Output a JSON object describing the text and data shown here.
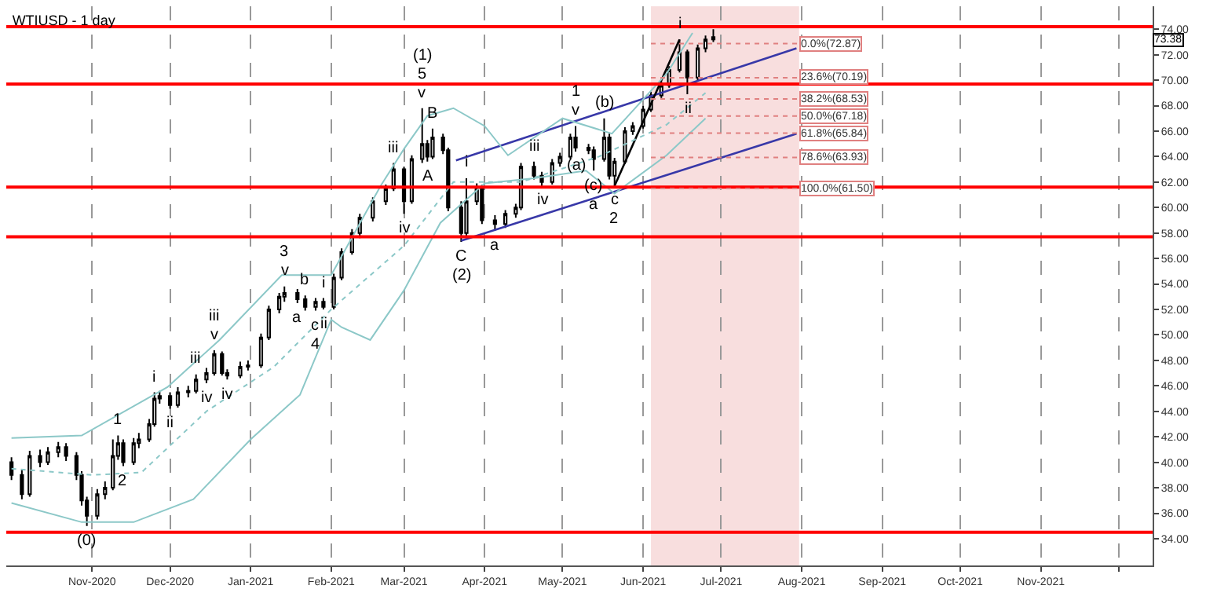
{
  "chart_data": {
    "type": "candlestick",
    "title": "WTIUSD - 1 day",
    "color": "#000000",
    "x": [
      "2020-10-01",
      "2020-10-05",
      "2020-10-08",
      "2020-10-12",
      "2020-10-15",
      "2020-10-19",
      "2020-10-22",
      "2020-10-26",
      "2020-10-28",
      "2020-10-30",
      "2020-11-03",
      "2020-11-06",
      "2020-11-09",
      "2020-11-11",
      "2020-11-13",
      "2020-11-17",
      "2020-11-19",
      "2020-11-23",
      "2020-11-25",
      "2020-11-27",
      "2020-12-01",
      "2020-12-04",
      "2020-12-08",
      "2020-12-11",
      "2020-12-15",
      "2020-12-18",
      "2020-12-21",
      "2020-12-23",
      "2020-12-28",
      "2020-12-31",
      "2021-01-05",
      "2021-01-08",
      "2021-01-12",
      "2021-01-14",
      "2021-01-19",
      "2021-01-22",
      "2021-01-26",
      "2021-01-29",
      "2021-02-02",
      "2021-02-05",
      "2021-02-09",
      "2021-02-12",
      "2021-02-17",
      "2021-02-22",
      "2021-02-25",
      "2021-03-01",
      "2021-03-04",
      "2021-03-08",
      "2021-03-10",
      "2021-03-12",
      "2021-03-16",
      "2021-03-18",
      "2021-03-23",
      "2021-03-25",
      "2021-03-29",
      "2021-03-31",
      "2021-04-05",
      "2021-04-09",
      "2021-04-13",
      "2021-04-15",
      "2021-04-20",
      "2021-04-23",
      "2021-04-27",
      "2021-04-30",
      "2021-05-04",
      "2021-05-06",
      "2021-05-11",
      "2021-05-13",
      "2021-05-17",
      "2021-05-19",
      "2021-05-21",
      "2021-05-25",
      "2021-05-28",
      "2021-06-01",
      "2021-06-04",
      "2021-06-08",
      "2021-06-11",
      "2021-06-15",
      "2021-06-18",
      "2021-06-22",
      "2021-06-25",
      "2021-06-28"
    ],
    "ohlc": [
      [
        40.0,
        40.4,
        38.6,
        39.0
      ],
      [
        39.0,
        39.4,
        37.1,
        37.5
      ],
      [
        37.5,
        40.9,
        37.3,
        40.5
      ],
      [
        40.5,
        41.0,
        39.6,
        40.0
      ],
      [
        40.0,
        41.2,
        39.8,
        40.8
      ],
      [
        40.8,
        41.6,
        40.4,
        41.2
      ],
      [
        41.2,
        41.5,
        40.1,
        40.5
      ],
      [
        40.5,
        40.8,
        38.6,
        39.0
      ],
      [
        39.0,
        39.3,
        36.6,
        37.0
      ],
      [
        37.0,
        37.3,
        35.0,
        35.8
      ],
      [
        35.8,
        37.9,
        35.5,
        37.5
      ],
      [
        37.5,
        38.5,
        37.1,
        38.0
      ],
      [
        38.0,
        41.8,
        37.8,
        40.5
      ],
      [
        40.5,
        42.1,
        40.2,
        41.5
      ],
      [
        41.5,
        41.8,
        39.7,
        40.0
      ],
      [
        40.0,
        41.9,
        39.8,
        41.5
      ],
      [
        41.5,
        42.3,
        41.1,
        41.8
      ],
      [
        41.8,
        43.4,
        41.6,
        43.0
      ],
      [
        43.0,
        45.5,
        42.8,
        45.0
      ],
      [
        45.0,
        45.6,
        44.6,
        45.2
      ],
      [
        45.2,
        45.5,
        44.2,
        44.5
      ],
      [
        44.5,
        45.9,
        44.3,
        45.5
      ],
      [
        45.5,
        46.0,
        45.1,
        45.6
      ],
      [
        45.6,
        46.9,
        45.4,
        46.5
      ],
      [
        46.5,
        47.4,
        46.2,
        47.0
      ],
      [
        47.0,
        48.8,
        46.8,
        48.5
      ],
      [
        48.5,
        48.7,
        46.8,
        47.0
      ],
      [
        47.0,
        47.3,
        46.5,
        46.8
      ],
      [
        46.8,
        47.9,
        46.6,
        47.5
      ],
      [
        47.5,
        48.0,
        47.2,
        47.6
      ],
      [
        47.6,
        50.1,
        47.4,
        49.8
      ],
      [
        49.8,
        52.3,
        49.6,
        52.0
      ],
      [
        52.0,
        53.3,
        51.7,
        53.0
      ],
      [
        53.0,
        53.8,
        52.6,
        53.3
      ],
      [
        53.3,
        53.6,
        52.5,
        52.8
      ],
      [
        52.8,
        53.1,
        51.9,
        52.2
      ],
      [
        52.2,
        52.9,
        51.9,
        52.6
      ],
      [
        52.6,
        52.9,
        52.0,
        52.2
      ],
      [
        52.2,
        54.8,
        52.0,
        54.5
      ],
      [
        54.5,
        56.8,
        54.3,
        56.5
      ],
      [
        56.5,
        58.3,
        56.3,
        58.0
      ],
      [
        58.0,
        59.5,
        57.6,
        59.2
      ],
      [
        59.2,
        60.8,
        58.9,
        60.5
      ],
      [
        60.5,
        61.8,
        60.2,
        61.5
      ],
      [
        61.5,
        63.5,
        61.3,
        63.0
      ],
      [
        63.0,
        63.2,
        59.5,
        60.5
      ],
      [
        60.5,
        64.1,
        60.3,
        63.8
      ],
      [
        63.8,
        67.8,
        63.5,
        65.0
      ],
      [
        65.0,
        65.3,
        63.6,
        64.0
      ],
      [
        64.0,
        66.2,
        63.8,
        65.5
      ],
      [
        65.5,
        65.8,
        64.2,
        64.5
      ],
      [
        64.5,
        64.7,
        59.7,
        60.0
      ],
      [
        60.0,
        60.5,
        57.3,
        58.0
      ],
      [
        58.0,
        62.3,
        57.8,
        60.5
      ],
      [
        60.5,
        61.9,
        60.2,
        61.5
      ],
      [
        61.5,
        61.8,
        58.7,
        59.0
      ],
      [
        59.0,
        59.4,
        58.2,
        58.7
      ],
      [
        58.7,
        59.8,
        58.4,
        59.5
      ],
      [
        59.5,
        60.3,
        59.2,
        60.0
      ],
      [
        60.0,
        63.5,
        59.8,
        63.2
      ],
      [
        63.2,
        63.6,
        62.2,
        62.5
      ],
      [
        62.5,
        62.8,
        61.7,
        62.0
      ],
      [
        62.0,
        63.8,
        61.8,
        63.5
      ],
      [
        63.5,
        64.3,
        63.2,
        64.0
      ],
      [
        64.0,
        65.8,
        63.8,
        65.5
      ],
      [
        65.5,
        66.4,
        64.4,
        64.7
      ],
      [
        64.7,
        65.0,
        64.2,
        64.5
      ],
      [
        64.5,
        64.8,
        62.9,
        63.8
      ],
      [
        63.8,
        67.0,
        63.6,
        65.5
      ],
      [
        65.5,
        65.8,
        62.2,
        62.5
      ],
      [
        62.5,
        63.9,
        61.7,
        63.6
      ],
      [
        63.6,
        66.3,
        63.4,
        66.0
      ],
      [
        66.0,
        66.7,
        65.7,
        66.4
      ],
      [
        66.4,
        68.0,
        66.2,
        67.7
      ],
      [
        67.7,
        69.1,
        67.5,
        68.8
      ],
      [
        68.8,
        69.9,
        68.6,
        69.6
      ],
      [
        69.6,
        71.1,
        69.4,
        70.8
      ],
      [
        70.8,
        73.2,
        70.6,
        72.2
      ],
      [
        72.2,
        72.4,
        68.9,
        70.2
      ],
      [
        70.2,
        72.8,
        70.0,
        72.5
      ],
      [
        72.5,
        73.5,
        72.2,
        73.2
      ],
      [
        73.2,
        74.0,
        73.0,
        73.38
      ]
    ],
    "series": [
      {
        "type": "line",
        "color": "#3838a8",
        "x": [
          "2021-03-21",
          "2021-07-30"
        ],
        "values": [
          63.7,
          72.5
        ]
      },
      {
        "type": "line",
        "color": "#3838a8",
        "x": [
          "2021-03-23",
          "2021-07-30"
        ],
        "values": [
          57.4,
          65.8
        ]
      },
      {
        "type": "line",
        "color": "#000000",
        "x": [
          "2021-05-21",
          "2021-06-15"
        ],
        "values": [
          61.7,
          73.2
        ]
      },
      {
        "type": "line",
        "color": "#8cc8c8",
        "x": [
          "2020-10-01",
          "2020-10-28",
          "2020-11-30",
          "2020-12-20",
          "2021-01-13",
          "2021-02-01",
          "2021-02-20",
          "2021-03-01",
          "2021-03-10",
          "2021-03-20",
          "2021-04-01",
          "2021-04-10",
          "2021-05-01",
          "2021-05-20",
          "2021-06-10",
          "2021-06-20"
        ],
        "values": [
          41.9,
          42.1,
          45.9,
          49.6,
          54.7,
          54.7,
          61.7,
          64.6,
          67.2,
          67.8,
          66.4,
          64.1,
          67.0,
          65.8,
          70.5,
          73.7
        ]
      },
      {
        "type": "line",
        "color": "#8cc8c8",
        "x": [
          "2020-10-01",
          "2020-10-28",
          "2020-11-17",
          "2020-12-10",
          "2021-01-01",
          "2021-01-20",
          "2021-02-01",
          "2021-02-05",
          "2021-02-16",
          "2021-03-01",
          "2021-03-15",
          "2021-04-01",
          "2021-04-20",
          "2021-05-10",
          "2021-05-21",
          "2021-06-10",
          "2021-06-25"
        ],
        "values": [
          36.8,
          35.3,
          35.3,
          37.1,
          41.8,
          45.3,
          51.2,
          50.6,
          49.6,
          53.5,
          58.8,
          61.9,
          62.3,
          62.9,
          61.1,
          64.1,
          67.0
        ]
      },
      {
        "type": "line",
        "color": "#8cc8c8",
        "line_style": "dotted",
        "x": [
          "2020-10-01",
          "2020-11-01",
          "2020-11-20",
          "2020-12-15",
          "2021-01-10",
          "2021-02-01",
          "2021-03-01",
          "2021-03-20",
          "2021-04-15",
          "2021-05-15",
          "2021-06-10",
          "2021-06-25"
        ],
        "values": [
          39.5,
          39.0,
          39.2,
          44.0,
          47.5,
          52.0,
          57.0,
          62.0,
          62.0,
          64.0,
          66.5,
          69.0
        ]
      }
    ],
    "ref_lines": [
      {
        "axis": "y",
        "value": 74.2,
        "color": "#ff0000"
      },
      {
        "axis": "y",
        "value": 69.7,
        "color": "#ff0000"
      },
      {
        "axis": "y",
        "value": 61.6,
        "color": "#ff0000"
      },
      {
        "axis": "y",
        "value": 57.7,
        "color": "#ff0000"
      },
      {
        "axis": "y",
        "value": 34.5,
        "color": "#ff0000"
      },
      {
        "axis": "y",
        "value": 72.87,
        "label": "0.0%(72.87)",
        "color": "#e08080",
        "line_style": "dotted"
      },
      {
        "axis": "y",
        "value": 70.19,
        "label": "23.6%(70.19)",
        "color": "#e08080",
        "line_style": "dotted"
      },
      {
        "axis": "y",
        "value": 68.53,
        "label": "38.2%(68.53)",
        "color": "#e08080",
        "line_style": "dotted"
      },
      {
        "axis": "y",
        "value": 67.18,
        "label": "50.0%(67.18)",
        "color": "#e08080",
        "line_style": "dotted"
      },
      {
        "axis": "y",
        "value": 65.84,
        "label": "61.8%(65.84)",
        "color": "#e08080",
        "line_style": "dotted"
      },
      {
        "axis": "y",
        "value": 63.93,
        "label": "78.6%(63.93)",
        "color": "#e08080",
        "line_style": "dotted"
      },
      {
        "axis": "y",
        "value": 61.5,
        "label": "100.0%(61.50)",
        "color": "#e08080",
        "line_style": "dotted"
      }
    ],
    "bands": [
      {
        "axis": "x",
        "from": "2021-06-04",
        "to": "2021-07-31",
        "color": "#f8dede"
      }
    ],
    "annotations": [
      "73.38",
      {
        "text": "(0)",
        "x": "2020-10-30",
        "y": 35.0
      },
      {
        "text": "1",
        "x": "2020-11-11",
        "y": 42.1
      },
      {
        "text": "2",
        "x": "2020-11-13",
        "y": 39.7
      },
      {
        "text": "i",
        "x": "2020-11-25",
        "y": 45.5
      },
      {
        "text": "ii",
        "x": "2020-12-01",
        "y": 44.2
      },
      {
        "text": "iii",
        "x": "2020-12-11",
        "y": 46.9
      },
      {
        "text": "iv",
        "x": "2020-12-15",
        "y": 46.2
      },
      {
        "text": "v",
        "x": "2020-12-18",
        "y": 48.8
      },
      {
        "text": "iii",
        "x": "2020-12-18",
        "y": 48.8
      },
      {
        "text": "iv",
        "x": "2020-12-23",
        "y": 46.5
      },
      {
        "text": "v",
        "x": "2021-01-14",
        "y": 53.8
      },
      {
        "text": "3",
        "x": "2021-01-14",
        "y": 53.8
      },
      {
        "text": "b",
        "x": "2021-01-22",
        "y": 53.1
      },
      {
        "text": "a",
        "x": "2021-01-19",
        "y": 52.5
      },
      {
        "text": "c",
        "x": "2021-01-26",
        "y": 51.9
      },
      {
        "text": "4",
        "x": "2021-01-26",
        "y": 51.9
      },
      {
        "text": "i",
        "x": "2021-01-29",
        "y": 52.9
      },
      {
        "text": "ii",
        "x": "2021-01-29",
        "y": 52.0
      },
      {
        "text": "iii",
        "x": "2021-02-25",
        "y": 63.5
      },
      {
        "text": "iv",
        "x": "2021-03-01",
        "y": 59.5
      },
      {
        "text": "v",
        "x": "2021-03-08",
        "y": 67.8
      },
      {
        "text": "5",
        "x": "2021-03-08",
        "y": 67.8
      },
      {
        "text": "(1)",
        "x": "2021-03-08",
        "y": 67.8
      },
      {
        "text": "A",
        "x": "2021-03-10",
        "y": 63.6
      },
      {
        "text": "B",
        "x": "2021-03-12",
        "y": 66.2
      },
      {
        "text": "C",
        "x": "2021-03-23",
        "y": 57.3
      },
      {
        "text": "(2)",
        "x": "2021-03-23",
        "y": 57.3
      },
      {
        "text": "i",
        "x": "2021-03-25",
        "y": 62.3
      },
      {
        "text": "a",
        "x": "2021-04-05",
        "y": 58.2
      },
      {
        "text": "iii",
        "x": "2021-04-20",
        "y": 63.6
      },
      {
        "text": "iv",
        "x": "2021-04-23",
        "y": 61.7
      },
      {
        "text": "v",
        "x": "2021-05-06",
        "y": 66.4
      },
      {
        "text": "1",
        "x": "2021-05-06",
        "y": 66.4
      },
      {
        "text": "(a)",
        "x": "2021-05-06",
        "y": 64.4
      },
      {
        "text": "(b)",
        "x": "2021-05-17",
        "y": 67.0
      },
      {
        "text": "(c)",
        "x": "2021-05-13",
        "y": 62.9
      },
      {
        "text": "a",
        "x": "2021-05-13",
        "y": 62.9
      },
      {
        "text": "c",
        "x": "2021-05-21",
        "y": 61.7
      },
      {
        "text": "2",
        "x": "2021-05-21",
        "y": 61.7
      },
      {
        "text": "i",
        "x": "2021-06-15",
        "y": 73.2
      },
      {
        "text": "ii",
        "x": "2021-06-18",
        "y": 68.9
      }
    ],
    "xlim": [
      "2020-09-29",
      "2021-12-14"
    ],
    "xticks": [
      {
        "value": "2020-11-01",
        "label": "Nov-2020"
      },
      {
        "value": "2020-12-01",
        "label": "Dec-2020"
      },
      {
        "value": "2021-01-01",
        "label": "Jan-2021"
      },
      {
        "value": "2021-02-01",
        "label": "Feb-2021"
      },
      {
        "value": "2021-03-01",
        "label": "Mar-2021"
      },
      {
        "value": "2021-04-01",
        "label": "Apr-2021"
      },
      {
        "value": "2021-05-01",
        "label": "May-2021"
      },
      {
        "value": "2021-06-01",
        "label": "Jun-2021"
      },
      {
        "value": "2021-07-01",
        "label": "Jul-2021"
      },
      {
        "value": "2021-08-01",
        "label": "Aug-2021"
      },
      {
        "value": "2021-09-01",
        "label": "Sep-2021"
      },
      {
        "value": "2021-10-01",
        "label": "Oct-2021"
      },
      {
        "value": "2021-11-01",
        "label": "Nov-2021"
      },
      {
        "value": "2021-12-01",
        "label": null
      }
    ],
    "ylim": [
      31.9,
      75.8
    ],
    "yticks": [
      {
        "value": 34,
        "label": "34.00"
      },
      {
        "value": 36,
        "label": "36.00"
      },
      {
        "value": 38,
        "label": "38.00"
      },
      {
        "value": 40,
        "label": "40.00"
      },
      {
        "value": 42,
        "label": "42.00"
      },
      {
        "value": 44,
        "label": "44.00"
      },
      {
        "value": 46,
        "label": "46.00"
      },
      {
        "value": 48,
        "label": "48.00"
      },
      {
        "value": 50,
        "label": "50.00"
      },
      {
        "value": 52,
        "label": "52.00"
      },
      {
        "value": 54,
        "label": "54.00"
      },
      {
        "value": 56,
        "label": "56.00"
      },
      {
        "value": 58,
        "label": "58.00"
      },
      {
        "value": 60,
        "label": "60.00"
      },
      {
        "value": 62,
        "label": "62.00"
      },
      {
        "value": 64,
        "label": "64.00"
      },
      {
        "value": 66,
        "label": "66.00"
      },
      {
        "value": 68,
        "label": "68.00"
      },
      {
        "value": 70,
        "label": "70.00"
      },
      {
        "value": 72,
        "label": "72.00"
      },
      {
        "value": 74,
        "label": "74.00"
      }
    ],
    "grid": "x"
  }
}
